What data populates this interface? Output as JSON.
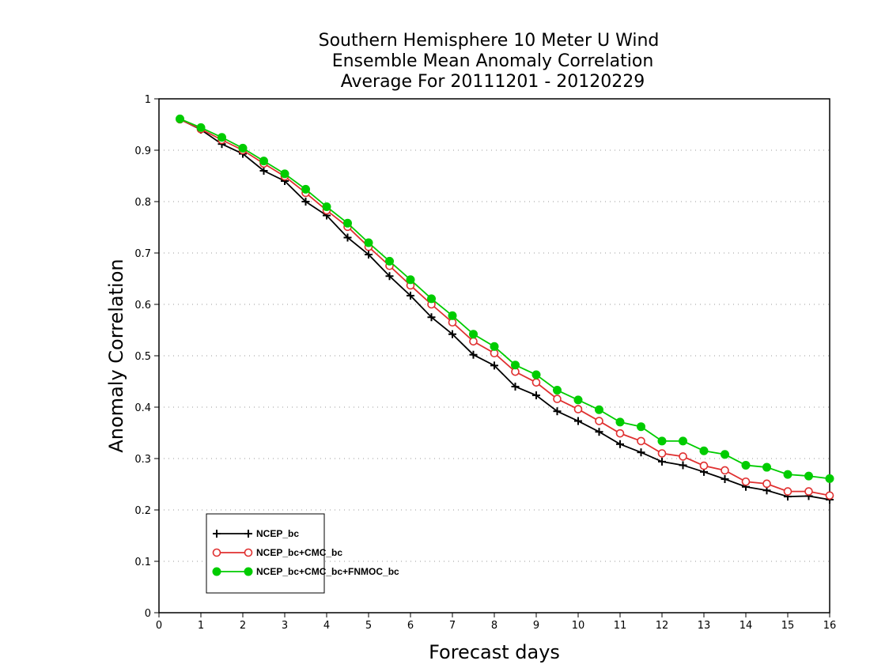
{
  "chart_data": {
    "type": "line",
    "title": [
      "Southern Hemisphere 10 Meter U Wind",
      "Ensemble Mean Anomaly Correlation",
      "Average For 20111201 - 20120229"
    ],
    "xlabel": "Forecast days",
    "ylabel": "Anomaly Correlation",
    "xlim": [
      0,
      16
    ],
    "ylim": [
      0,
      1
    ],
    "xticks": [
      "0",
      "1",
      "2",
      "3",
      "4",
      "5",
      "6",
      "7",
      "8",
      "9",
      "10",
      "11",
      "12",
      "13",
      "14",
      "15",
      "16"
    ],
    "yticks": [
      "0",
      "0.1",
      "0.2",
      "0.3",
      "0.4",
      "0.5",
      "0.6",
      "0.7",
      "0.8",
      "0.9",
      "1"
    ],
    "grid": "horizontal dotted",
    "legend_position": "bottom-left",
    "x": [
      0.5,
      1,
      1.5,
      2,
      2.5,
      3,
      3.5,
      4,
      4.5,
      5,
      5.5,
      6,
      6.5,
      7,
      7.5,
      8,
      8.5,
      9,
      9.5,
      10,
      10.5,
      11,
      11.5,
      12,
      12.5,
      13,
      13.5,
      14,
      14.5,
      15,
      15.5,
      16
    ],
    "series": [
      {
        "name": "NCEP_bc",
        "color": "#000000",
        "marker": "plus",
        "values": [
          0.96,
          0.94,
          0.912,
          0.893,
          0.86,
          0.84,
          0.8,
          0.773,
          0.73,
          0.697,
          0.655,
          0.617,
          0.575,
          0.542,
          0.502,
          0.481,
          0.44,
          0.423,
          0.392,
          0.373,
          0.352,
          0.328,
          0.312,
          0.294,
          0.287,
          0.274,
          0.26,
          0.245,
          0.238,
          0.226,
          0.227,
          0.22
        ]
      },
      {
        "name": "NCEP_bc+CMC_bc",
        "color": "#e03030",
        "marker": "open-circle",
        "values": [
          0.96,
          0.941,
          0.92,
          0.9,
          0.874,
          0.849,
          0.817,
          0.783,
          0.751,
          0.712,
          0.675,
          0.637,
          0.6,
          0.565,
          0.528,
          0.505,
          0.469,
          0.448,
          0.416,
          0.396,
          0.373,
          0.349,
          0.334,
          0.31,
          0.304,
          0.286,
          0.277,
          0.255,
          0.251,
          0.236,
          0.236,
          0.228
        ]
      },
      {
        "name": "NCEP_bc+CMC_bc+FNMOC_bc",
        "color": "#00cc00",
        "marker": "filled-circle",
        "values": [
          0.961,
          0.944,
          0.925,
          0.904,
          0.879,
          0.854,
          0.824,
          0.79,
          0.758,
          0.72,
          0.684,
          0.648,
          0.611,
          0.578,
          0.542,
          0.518,
          0.482,
          0.463,
          0.433,
          0.414,
          0.395,
          0.371,
          0.362,
          0.334,
          0.334,
          0.315,
          0.308,
          0.287,
          0.283,
          0.269,
          0.266,
          0.261
        ]
      }
    ]
  }
}
